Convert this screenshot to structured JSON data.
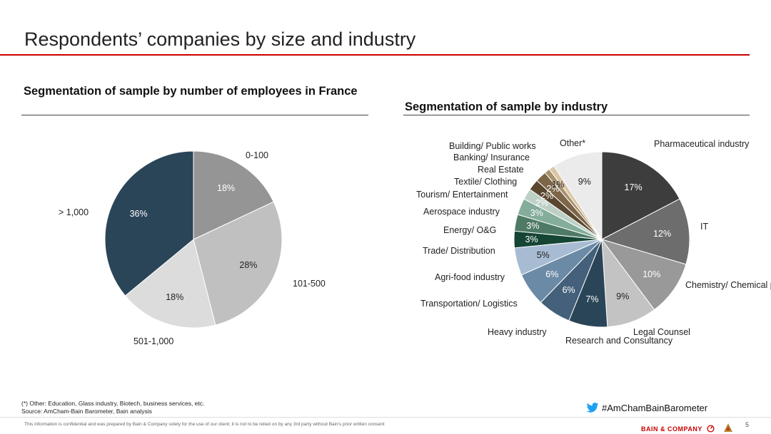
{
  "header": {
    "title": "Respondents’ companies by size and industry"
  },
  "left": {
    "section_title": "Segmentation of sample by number of employees in France"
  },
  "right": {
    "section_title": "Segmentation of sample by industry"
  },
  "chart_data": [
    {
      "type": "pie",
      "title": "Segmentation of sample by number of employees in France",
      "categories": [
        "0-100",
        "101-500",
        "501-1,000",
        "> 1,000"
      ],
      "values": [
        18,
        28,
        18,
        36
      ],
      "value_labels": [
        "18%",
        "28%",
        "18%",
        "36%"
      ],
      "colors": [
        "#959595",
        "#c0c0c0",
        "#dcdcdc",
        "#2b4558"
      ],
      "label_colors": [
        "#ffffff",
        "#222222",
        "#222222",
        "#ffffff"
      ]
    },
    {
      "type": "pie",
      "title": "Segmentation of sample by industry",
      "categories": [
        "Pharmaceutical industry",
        "IT",
        "Chemistry/ Chemical products",
        "Legal Counsel",
        "Research and Consultancy",
        "Heavy industry",
        "Transportation/ Logistics",
        "Agri-food industry",
        "Trade/ Distribution",
        "Energy/ O&G",
        "Aerospace industry",
        "Tourism/ Entertainment",
        "Textile/ Clothing",
        "Real Estate",
        "Banking/ Insurance",
        "Building/ Public works",
        "Other*"
      ],
      "values": [
        17,
        12,
        10,
        9,
        7,
        6,
        6,
        5,
        3,
        3,
        3,
        2,
        2,
        2,
        1,
        1,
        9
      ],
      "value_labels": [
        "17%",
        "12%",
        "10%",
        "9%",
        "7%",
        "6%",
        "6%",
        "5%",
        "3%",
        "3%",
        "3%",
        "2%",
        "2%",
        "2%",
        "1%",
        "",
        "9%"
      ],
      "colors": [
        "#3d3d3d",
        "#6d6d6d",
        "#999999",
        "#c3c3c3",
        "#2b4558",
        "#44607a",
        "#6b8aa6",
        "#a7bcd2",
        "#154535",
        "#4e7a66",
        "#84ad9b",
        "#bdd0c6",
        "#5a4730",
        "#7d6548",
        "#a8926e",
        "#dac6a5",
        "#ebebeb"
      ],
      "label_colors": [
        "#ffffff",
        "#ffffff",
        "#ffffff",
        "#222222",
        "#ffffff",
        "#ffffff",
        "#ffffff",
        "#222222",
        "#ffffff",
        "#ffffff",
        "#ffffff",
        "#ffffff",
        "#ffffff",
        "#ffffff",
        "#222222",
        "#222222",
        "#222222"
      ]
    }
  ],
  "footer": {
    "note": "(*) Other: Education, Glass industry, Biotech, business services, etc.",
    "source": "Source: AmCham-Bain Barometer, Bain analysis",
    "confidential": "This information is confidential and was prepared by Bain & Company solely for the use of our client; it is not to be relied on by any 3rd party without Bain's prior written consent",
    "hashtag": "#AmChamBainBarometer",
    "brand": "BAIN & COMPANY",
    "page_number": "5"
  }
}
